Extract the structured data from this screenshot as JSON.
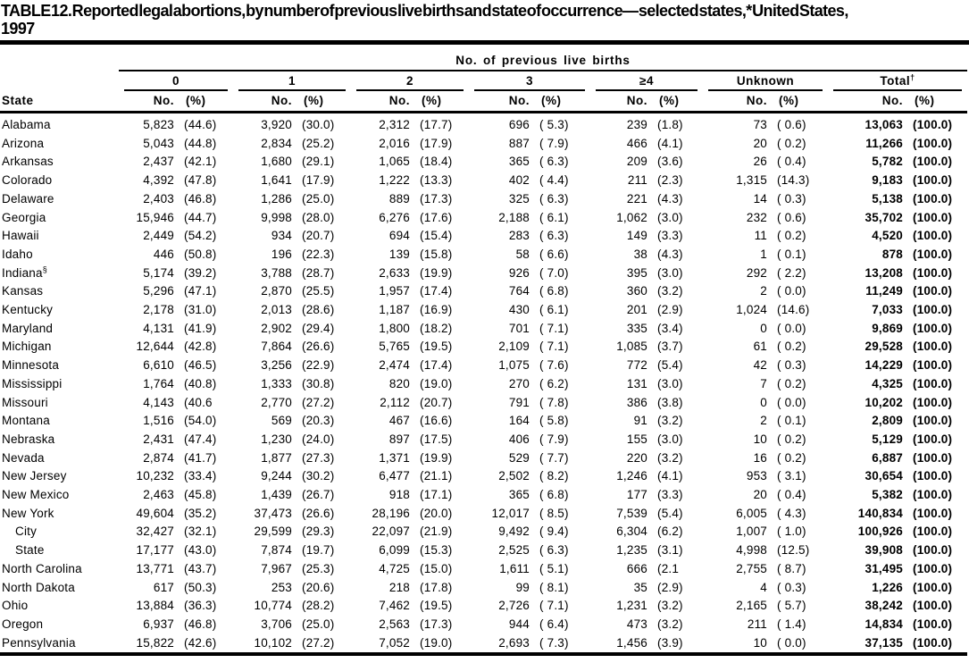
{
  "title_line1": "TABLE 12. Reported legal abortions, by number of previous live births and state of occurrence— selected states,* United States,",
  "title_line2": "1997",
  "table": {
    "spanner": "No. of previous live births",
    "state_header": "State",
    "groups": [
      {
        "label": "0"
      },
      {
        "label": "1"
      },
      {
        "label": "2"
      },
      {
        "label": "3"
      },
      {
        "label": "≥4"
      },
      {
        "label": "Unknown"
      },
      {
        "label": "Total",
        "sup": "†"
      }
    ],
    "subheaders": {
      "no": "No.",
      "pct": "(%)"
    },
    "rows": [
      {
        "state": "Alabama",
        "cells": [
          "5,823",
          "(44.6)",
          "3,920",
          "(30.0)",
          "2,312",
          "(17.7)",
          "696",
          "( 5.3)",
          "239",
          "(1.8)",
          "73",
          "( 0.6)",
          "13,063",
          "(100.0)"
        ]
      },
      {
        "state": "Arizona",
        "cells": [
          "5,043",
          "(44.8)",
          "2,834",
          "(25.2)",
          "2,016",
          "(17.9)",
          "887",
          "( 7.9)",
          "466",
          "(4.1)",
          "20",
          "( 0.2)",
          "11,266",
          "(100.0)"
        ]
      },
      {
        "state": "Arkansas",
        "cells": [
          "2,437",
          "(42.1)",
          "1,680",
          "(29.1)",
          "1,065",
          "(18.4)",
          "365",
          "( 6.3)",
          "209",
          "(3.6)",
          "26",
          "( 0.4)",
          "5,782",
          "(100.0)"
        ]
      },
      {
        "state": "Colorado",
        "cells": [
          "4,392",
          "(47.8)",
          "1,641",
          "(17.9)",
          "1,222",
          "(13.3)",
          "402",
          "( 4.4)",
          "211",
          "(2.3)",
          "1,315",
          "(14.3)",
          "9,183",
          "(100.0)"
        ]
      },
      {
        "state": "Delaware",
        "cells": [
          "2,403",
          "(46.8)",
          "1,286",
          "(25.0)",
          "889",
          "(17.3)",
          "325",
          "( 6.3)",
          "221",
          "(4.3)",
          "14",
          "( 0.3)",
          "5,138",
          "(100.0)"
        ]
      },
      {
        "state": "Georgia",
        "cells": [
          "15,946",
          "(44.7)",
          "9,998",
          "(28.0)",
          "6,276",
          "(17.6)",
          "2,188",
          "( 6.1)",
          "1,062",
          "(3.0)",
          "232",
          "( 0.6)",
          "35,702",
          "(100.0)"
        ]
      },
      {
        "state": "Hawaii",
        "cells": [
          "2,449",
          "(54.2)",
          "934",
          "(20.7)",
          "694",
          "(15.4)",
          "283",
          "( 6.3)",
          "149",
          "(3.3)",
          "11",
          "( 0.2)",
          "4,520",
          "(100.0)"
        ]
      },
      {
        "state": "Idaho",
        "cells": [
          "446",
          "(50.8)",
          "196",
          "(22.3)",
          "139",
          "(15.8)",
          "58",
          "( 6.6)",
          "38",
          "(4.3)",
          "1",
          "( 0.1)",
          "878",
          "(100.0)"
        ]
      },
      {
        "state": "Indiana",
        "sup": "§",
        "cells": [
          "5,174",
          "(39.2)",
          "3,788",
          "(28.7)",
          "2,633",
          "(19.9)",
          "926",
          "( 7.0)",
          "395",
          "(3.0)",
          "292",
          "( 2.2)",
          "13,208",
          "(100.0)"
        ]
      },
      {
        "state": "Kansas",
        "cells": [
          "5,296",
          "(47.1)",
          "2,870",
          "(25.5)",
          "1,957",
          "(17.4)",
          "764",
          "( 6.8)",
          "360",
          "(3.2)",
          "2",
          "( 0.0)",
          "11,249",
          "(100.0)"
        ]
      },
      {
        "state": "Kentucky",
        "cells": [
          "2,178",
          "(31.0)",
          "2,013",
          "(28.6)",
          "1,187",
          "(16.9)",
          "430",
          "( 6.1)",
          "201",
          "(2.9)",
          "1,024",
          "(14.6)",
          "7,033",
          "(100.0)"
        ]
      },
      {
        "state": "Maryland",
        "cells": [
          "4,131",
          "(41.9)",
          "2,902",
          "(29.4)",
          "1,800",
          "(18.2)",
          "701",
          "( 7.1)",
          "335",
          "(3.4)",
          "0",
          "( 0.0)",
          "9,869",
          "(100.0)"
        ]
      },
      {
        "state": "Michigan",
        "cells": [
          "12,644",
          "(42.8)",
          "7,864",
          "(26.6)",
          "5,765",
          "(19.5)",
          "2,109",
          "( 7.1)",
          "1,085",
          "(3.7)",
          "61",
          "( 0.2)",
          "29,528",
          "(100.0)"
        ]
      },
      {
        "state": "Minnesota",
        "cells": [
          "6,610",
          "(46.5)",
          "3,256",
          "(22.9)",
          "2,474",
          "(17.4)",
          "1,075",
          "( 7.6)",
          "772",
          "(5.4)",
          "42",
          "( 0.3)",
          "14,229",
          "(100.0)"
        ]
      },
      {
        "state": "Mississippi",
        "cells": [
          "1,764",
          "(40.8)",
          "1,333",
          "(30.8)",
          "820",
          "(19.0)",
          "270",
          "( 6.2)",
          "131",
          "(3.0)",
          "7",
          "( 0.2)",
          "4,325",
          "(100.0)"
        ]
      },
      {
        "state": "Missouri",
        "cells": [
          "4,143",
          "(40.6",
          "2,770",
          "(27.2)",
          "2,112",
          "(20.7)",
          "791",
          "( 7.8)",
          "386",
          "(3.8)",
          "0",
          "( 0.0)",
          "10,202",
          "(100.0)"
        ]
      },
      {
        "state": "Montana",
        "cells": [
          "1,516",
          "(54.0)",
          "569",
          "(20.3)",
          "467",
          "(16.6)",
          "164",
          "( 5.8)",
          "91",
          "(3.2)",
          "2",
          "( 0.1)",
          "2,809",
          "(100.0)"
        ]
      },
      {
        "state": "Nebraska",
        "cells": [
          "2,431",
          "(47.4)",
          "1,230",
          "(24.0)",
          "897",
          "(17.5)",
          "406",
          "( 7.9)",
          "155",
          "(3.0)",
          "10",
          "( 0.2)",
          "5,129",
          "(100.0)"
        ]
      },
      {
        "state": "Nevada",
        "cells": [
          "2,874",
          "(41.7)",
          "1,877",
          "(27.3)",
          "1,371",
          "(19.9)",
          "529",
          "( 7.7)",
          "220",
          "(3.2)",
          "16",
          "( 0.2)",
          "6,887",
          "(100.0)"
        ]
      },
      {
        "state": "New Jersey",
        "cells": [
          "10,232",
          "(33.4)",
          "9,244",
          "(30.2)",
          "6,477",
          "(21.1)",
          "2,502",
          "( 8.2)",
          "1,246",
          "(4.1)",
          "953",
          "( 3.1)",
          "30,654",
          "(100.0)"
        ]
      },
      {
        "state": "New Mexico",
        "cells": [
          "2,463",
          "(45.8)",
          "1,439",
          "(26.7)",
          "918",
          "(17.1)",
          "365",
          "( 6.8)",
          "177",
          "(3.3)",
          "20",
          "( 0.4)",
          "5,382",
          "(100.0)"
        ]
      },
      {
        "state": "New York",
        "cells": [
          "49,604",
          "(35.2)",
          "37,473",
          "(26.6)",
          "28,196",
          "(20.0)",
          "12,017",
          "( 8.5)",
          "7,539",
          "(5.4)",
          "6,005",
          "( 4.3)",
          "140,834",
          "(100.0)"
        ]
      },
      {
        "state": "City",
        "indent": true,
        "cells": [
          "32,427",
          "(32.1)",
          "29,599",
          "(29.3)",
          "22,097",
          "(21.9)",
          "9,492",
          "( 9.4)",
          "6,304",
          "(6.2)",
          "1,007",
          "( 1.0)",
          "100,926",
          "(100.0)"
        ]
      },
      {
        "state": "State",
        "indent": true,
        "cells": [
          "17,177",
          "(43.0)",
          "7,874",
          "(19.7)",
          "6,099",
          "(15.3)",
          "2,525",
          "( 6.3)",
          "1,235",
          "(3.1)",
          "4,998",
          "(12.5)",
          "39,908",
          "(100.0)"
        ]
      },
      {
        "state": "North Carolina",
        "cells": [
          "13,771",
          "(43.7)",
          "7,967",
          "(25.3)",
          "4,725",
          "(15.0)",
          "1,611",
          "( 5.1)",
          "666",
          "(2.1",
          "2,755",
          "( 8.7)",
          "31,495",
          "(100.0)"
        ]
      },
      {
        "state": "North Dakota",
        "cells": [
          "617",
          "(50.3)",
          "253",
          "(20.6)",
          "218",
          "(17.8)",
          "99",
          "( 8.1)",
          "35",
          "(2.9)",
          "4",
          "( 0.3)",
          "1,226",
          "(100.0)"
        ]
      },
      {
        "state": "Ohio",
        "cells": [
          "13,884",
          "(36.3)",
          "10,774",
          "(28.2)",
          "7,462",
          "(19.5)",
          "2,726",
          "( 7.1)",
          "1,231",
          "(3.2)",
          "2,165",
          "( 5.7)",
          "38,242",
          "(100.0)"
        ]
      },
      {
        "state": "Oregon",
        "cells": [
          "6,937",
          "(46.8)",
          "3,706",
          "(25.0)",
          "2,563",
          "(17.3)",
          "944",
          "( 6.4)",
          "473",
          "(3.2)",
          "211",
          "( 1.4)",
          "14,834",
          "(100.0)"
        ]
      },
      {
        "state": "Pennsylvania",
        "cells": [
          "15,822",
          "(42.6)",
          "10,102",
          "(27.2)",
          "7,052",
          "(19.0)",
          "2,693",
          "( 7.3)",
          "1,456",
          "(3.9)",
          "10",
          "( 0.0)",
          "37,135",
          "(100.0)"
        ]
      }
    ]
  }
}
